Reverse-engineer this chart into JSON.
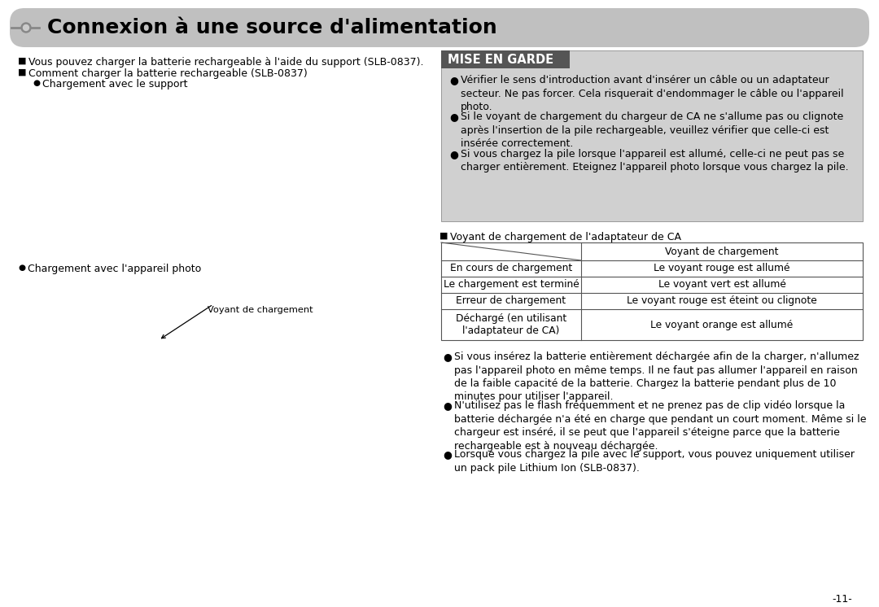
{
  "title": "Connexion à une source d'alimentation",
  "bg_color": "#ffffff",
  "title_bg": "#c0c0c0",
  "left_bullet1": "Vous pouvez charger la batterie rechargeable à l'aide du support (SLB-0837).",
  "left_bullet2": "Comment charger la batterie rechargeable (SLB-0837)",
  "left_sub1": "Chargement avec le support",
  "left_sub2": "Chargement avec l'appareil photo",
  "voyant_chargement": "Voyant de chargement",
  "voyant_ca_label": "Voyant de chargement de l'adaptateur de CA",
  "mise_en_garde_title": "MISE EN GARDE",
  "mise_en_garde_header_bg": "#555555",
  "mise_en_garde_box_bg": "#d0d0d0",
  "table_header_right": "Voyant de chargement",
  "table_rows": [
    [
      "En cours de chargement",
      "Le voyant rouge est allumé"
    ],
    [
      "Le chargement est terminé",
      "Le voyant vert est allumé"
    ],
    [
      "Erreur de chargement",
      "Le voyant rouge est éteint ou clignote"
    ],
    [
      "Déchargé (en utilisant\nl'adaptateur de CA)",
      "Le voyant orange est allumé"
    ]
  ],
  "mise_bullets": [
    "Vérifier le sens d'introduction avant d'insérer un câble ou un adaptateur\nsecteur. Ne pas forcer. Cela risquerait d'endommager le câble ou l'appareil\nphoto.",
    "Si le voyant de chargement du chargeur de CA ne s'allume pas ou clignote\naprès l'insertion de la pile rechargeable, veuillez vérifier que celle-ci est\ninsérée correctement.",
    "Si vous chargez la pile lorsque l'appareil est allumé, celle-ci ne peut pas se\ncharger entièrement. Eteignez l'appareil photo lorsque vous chargez la pile."
  ],
  "bottom_bullets": [
    "Si vous insérez la batterie entièrement déchargée afin de la charger, n'allumez\npas l'appareil photo en même temps. Il ne faut pas allumer l'appareil en raison\nde la faible capacité de la batterie. Chargez la batterie pendant plus de 10\nminutes pour utiliser l'appareil.",
    "N'utilisez pas le flash fréquemment et ne prenez pas de clip vidéo lorsque la\nbatterie déchargée n'a été en charge que pendant un court moment. Même si le\nchargeur est inséré, il se peut que l'appareil s'éteigne parce que la batterie\nrechargeable est à nouveau déchargée.",
    "Lorsque vous chargez la pile avec le support, vous pouvez uniquement utiliser\nun pack pile Lithium Ion (SLB-0837)."
  ],
  "page_number": "-11-",
  "fs_title": 18,
  "fs_body": 9.0,
  "fs_table": 8.8,
  "fs_mise_header": 10.5
}
